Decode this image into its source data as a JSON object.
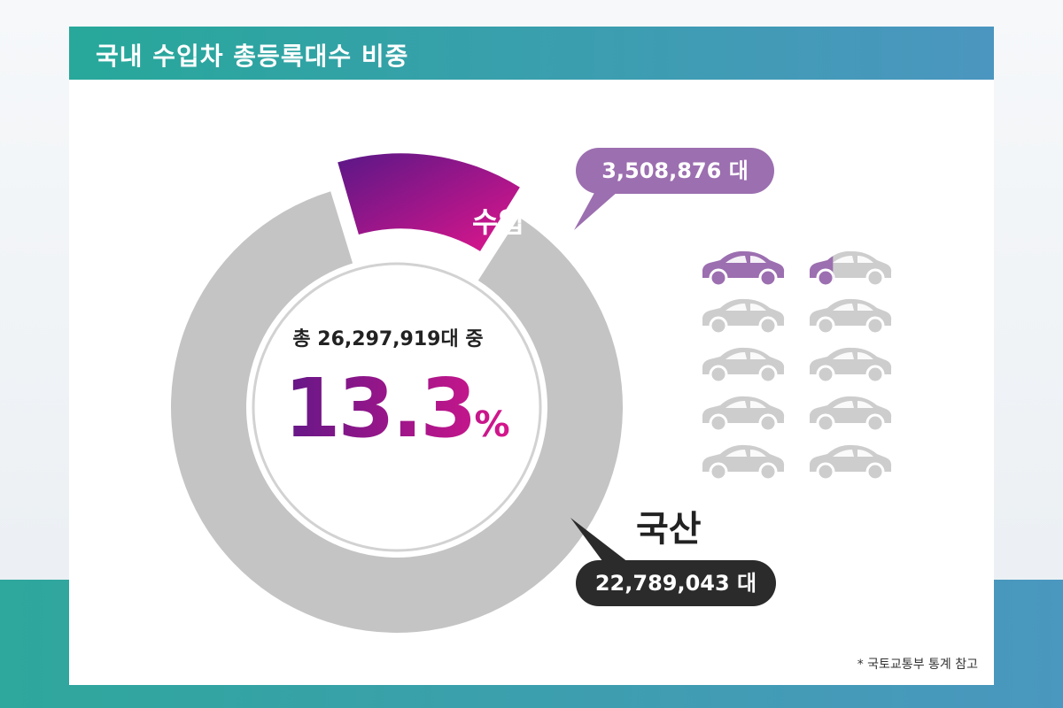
{
  "header": {
    "title": "국내 수입차 총등록대수 비중"
  },
  "center": {
    "total_text": "총 26,297,919대 중",
    "percent_number": "13.3",
    "percent_sign": "%"
  },
  "labels": {
    "import_label": "수입",
    "import_value": "3,508,876 대",
    "domestic_label": "국산",
    "domestic_value": "22,789,043 대"
  },
  "footnote": "* 국토교통부 통계 참고",
  "colors": {
    "import_start": "#5a1787",
    "import_end": "#e0168c",
    "domestic": "#c4c4c4",
    "header_start": "#27a89a",
    "header_end": "#4b96c0"
  },
  "car_icons": {
    "name": "car-icon",
    "total": 10,
    "highlighted": 1,
    "partial": 0.33
  },
  "chart_data": {
    "type": "pie",
    "title": "국내 수입차 총등록대수 비중",
    "total": 26297919,
    "slices": [
      {
        "name": "수입",
        "value": 3508876,
        "percent": 13.3
      },
      {
        "name": "국산",
        "value": 22789043,
        "percent": 86.7
      }
    ]
  }
}
